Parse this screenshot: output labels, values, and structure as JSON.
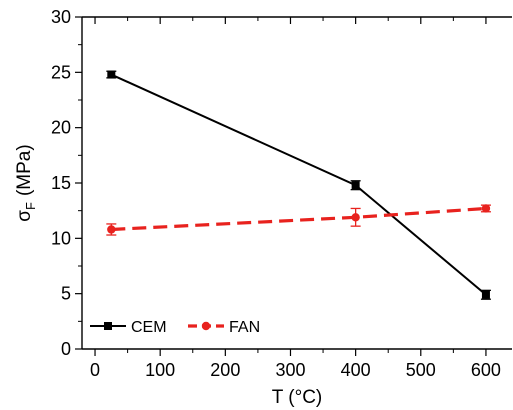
{
  "chart_data": {
    "type": "line",
    "xlabel": "T (°C)",
    "ylabel": {
      "symbol": "σ",
      "subscript": "F",
      "unit": "(MPa)"
    },
    "xlim": [
      -20,
      640
    ],
    "ylim": [
      0,
      30
    ],
    "x_ticks": [
      0,
      100,
      200,
      300,
      400,
      500,
      600
    ],
    "y_ticks": [
      0,
      5,
      10,
      15,
      20,
      25,
      30
    ],
    "legend_position": "bottom-left",
    "series": [
      {
        "name": "CEM",
        "color": "#000000",
        "line_style": "solid",
        "marker": "square",
        "x": [
          25,
          400,
          600
        ],
        "values": [
          24.8,
          14.8,
          4.9
        ],
        "errors": [
          0.3,
          0.4,
          0.4
        ]
      },
      {
        "name": "FAN",
        "color": "#e8221e",
        "line_style": "dashed",
        "marker": "circle",
        "x": [
          25,
          400,
          600
        ],
        "values": [
          10.8,
          11.9,
          12.7
        ],
        "errors": [
          0.5,
          0.8,
          0.3
        ]
      }
    ]
  }
}
